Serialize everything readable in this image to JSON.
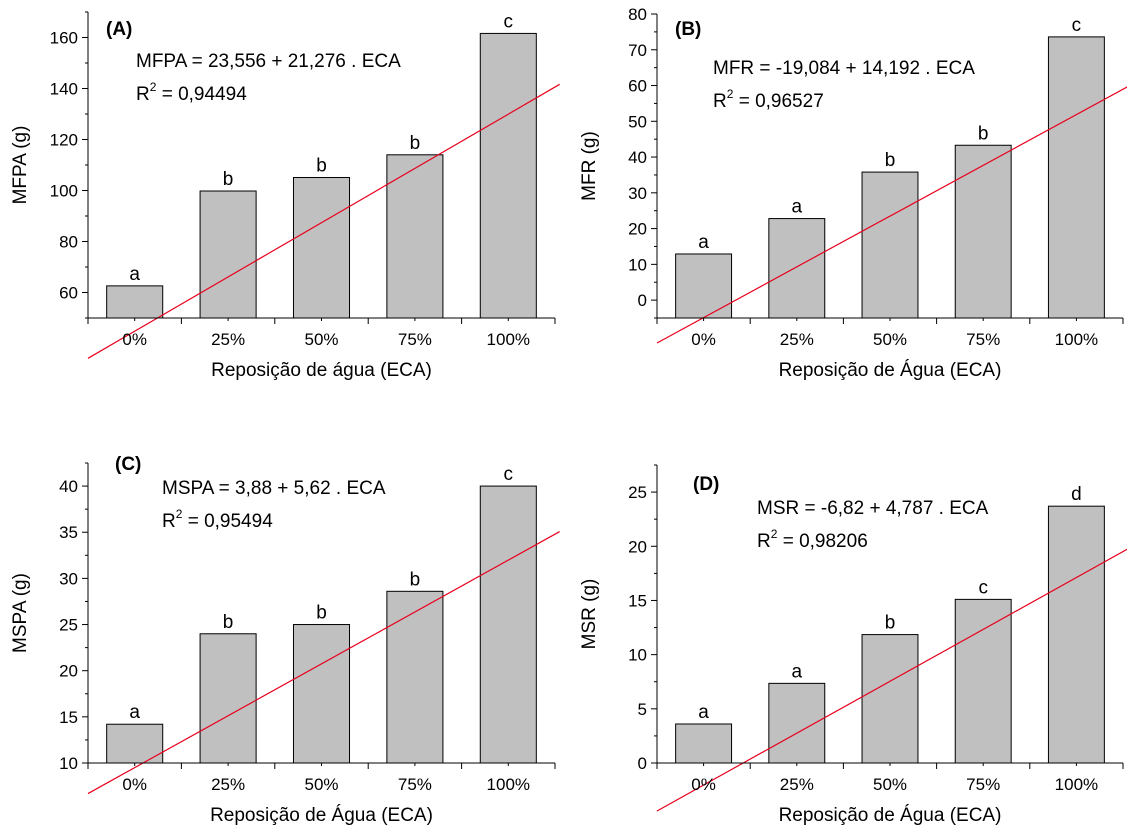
{
  "chart_data": [
    {
      "type": "bar",
      "panel_label": "(A)",
      "categories": [
        "0%",
        "25%",
        "50%",
        "75%",
        "100%"
      ],
      "values": [
        62.6,
        99.8,
        105.1,
        114.0,
        161.6
      ],
      "letters": [
        "a",
        "b",
        "b",
        "b",
        "c"
      ],
      "xlabel": "Reposição de água (ECA)",
      "ylabel": "MFPA (g)",
      "ylim": [
        50,
        170
      ],
      "yticks": [
        60,
        80,
        100,
        120,
        140,
        160
      ],
      "equation": "MFPA = 23,556 + 21,276 . ECA",
      "r2_label": "R",
      "r2_sup": "2",
      "r2_value": " = 0,94494",
      "fit": {
        "intercept": 23.556,
        "slope": 21.276
      },
      "bar_color": "#c0c0c0",
      "line_color": "#e8001c",
      "grid": false
    },
    {
      "type": "bar",
      "panel_label": "(B)",
      "categories": [
        "0%",
        "25%",
        "50%",
        "75%",
        "100%"
      ],
      "values": [
        12.9,
        22.8,
        35.8,
        43.3,
        73.6
      ],
      "letters": [
        "a",
        "a",
        "b",
        "b",
        "c"
      ],
      "xlabel": "Reposição de Água (ECA)",
      "ylabel": "MFR (g)",
      "ylim": [
        -5,
        80
      ],
      "yticks": [
        0,
        10,
        20,
        30,
        40,
        50,
        60,
        70,
        80
      ],
      "equation": "MFR = -19,084 + 14,192 . ECA",
      "r2_label": "R",
      "r2_sup": "2",
      "r2_value": " = 0,96527",
      "fit": {
        "intercept": -19.084,
        "slope": 14.192
      },
      "bar_color": "#c0c0c0",
      "line_color": "#e8001c",
      "grid": false
    },
    {
      "type": "bar",
      "panel_label": "(C)",
      "categories": [
        "0%",
        "25%",
        "50%",
        "75%",
        "100%"
      ],
      "values": [
        14.2,
        24.0,
        25.0,
        28.6,
        40.0
      ],
      "letters": [
        "a",
        "b",
        "b",
        "b",
        "c"
      ],
      "xlabel": "Reposição de Água (ECA)",
      "ylabel": "MSPA (g)",
      "ylim": [
        10,
        42.5
      ],
      "yticks": [
        10,
        15,
        20,
        25,
        30,
        35,
        40
      ],
      "equation": "MSPA = 3,88 + 5,62 . ECA",
      "r2_label": "R",
      "r2_sup": "2",
      "r2_value": " = 0,95494",
      "fit": {
        "intercept": 3.88,
        "slope": 5.62
      },
      "bar_color": "#c0c0c0",
      "line_color": "#e8001c",
      "grid": false
    },
    {
      "type": "bar",
      "panel_label": "(D)",
      "categories": [
        "0%",
        "25%",
        "50%",
        "75%",
        "100%"
      ],
      "values": [
        3.6,
        7.35,
        11.85,
        15.1,
        23.7
      ],
      "letters": [
        "a",
        "a",
        "b",
        "c",
        "d"
      ],
      "xlabel": "Reposição de Água (ECA)",
      "ylabel": "MSR (g)",
      "ylim": [
        0,
        27.5
      ],
      "yticks": [
        0,
        5,
        10,
        15,
        20,
        25
      ],
      "equation": "MSR = -6,82 + 4,787 . ECA",
      "r2_label": "R",
      "r2_sup": "2",
      "r2_value": " = 0,98206",
      "fit": {
        "intercept": -6.82,
        "slope": 4.787
      },
      "bar_color": "#c0c0c0",
      "line_color": "#e8001c",
      "grid": false
    }
  ]
}
